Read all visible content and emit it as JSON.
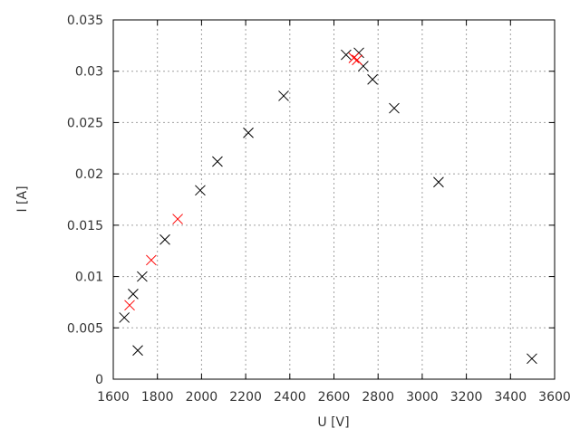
{
  "chart_data": {
    "type": "scatter",
    "title": "",
    "xlabel": "U [V]",
    "ylabel": "I [A]",
    "xlim": [
      1600,
      3600
    ],
    "ylim": [
      0,
      0.035
    ],
    "xticks": [
      1600,
      1800,
      2000,
      2200,
      2400,
      2600,
      2800,
      3000,
      3200,
      3400,
      3600
    ],
    "yticks": [
      "0",
      "0.005",
      "0.01",
      "0.015",
      "0.02",
      "0.025",
      "0.03",
      "0.035"
    ],
    "grid": true,
    "marker": "x",
    "series": [
      {
        "color": "#000000",
        "points": [
          [
            1650,
            0.006
          ],
          [
            1690,
            0.0083
          ],
          [
            1711,
            0.0028
          ],
          [
            1731,
            0.01
          ],
          [
            1834,
            0.0136
          ],
          [
            1994,
            0.0184
          ],
          [
            2072,
            0.0212
          ],
          [
            2212,
            0.024
          ],
          [
            2372,
            0.0276
          ],
          [
            2655,
            0.0316
          ],
          [
            2713,
            0.0318
          ],
          [
            2733,
            0.0305
          ],
          [
            2775,
            0.0292
          ],
          [
            2873,
            0.0264
          ],
          [
            3074,
            0.0192
          ],
          [
            3497,
            0.002
          ]
        ]
      },
      {
        "color": "#ff0000",
        "points": [
          [
            1674,
            0.0072
          ],
          [
            1772,
            0.0116
          ],
          [
            1892,
            0.0156
          ],
          [
            2690,
            0.0313
          ],
          [
            2705,
            0.0311
          ]
        ]
      }
    ]
  }
}
